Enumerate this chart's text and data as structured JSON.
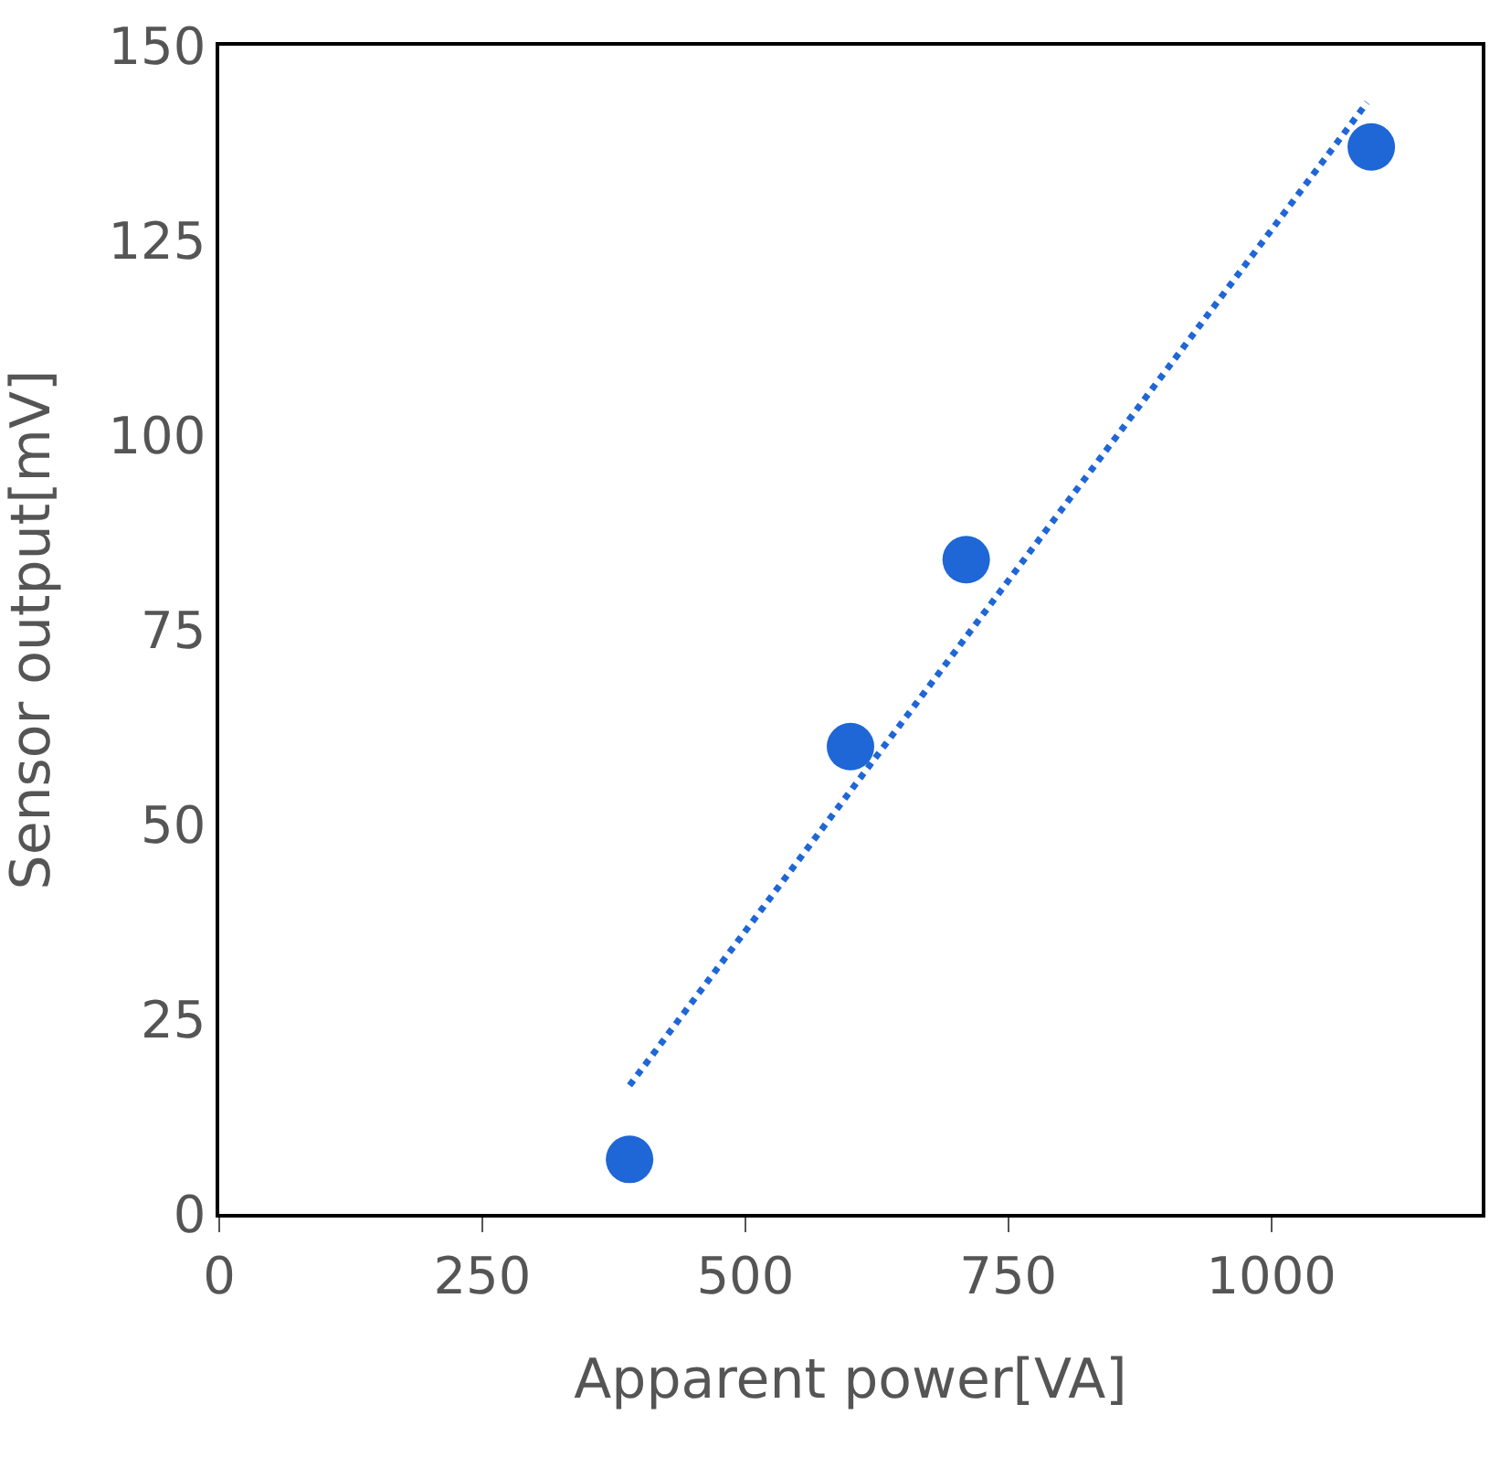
{
  "chart_data": {
    "type": "scatter",
    "xlabel": "Apparent power[VA]",
    "ylabel": "Sensor output[mV]",
    "xlim": [
      0,
      1200
    ],
    "xticks": [
      0,
      250,
      500,
      750,
      1000
    ],
    "ylim": [
      0,
      150
    ],
    "yticks": [
      0,
      25,
      50,
      75,
      100,
      125,
      150
    ],
    "marker": "circle",
    "series": [
      {
        "color": "#1f66d6",
        "x": [
          390,
          600,
          710,
          1095
        ],
        "values": [
          7,
          60,
          84,
          137
        ]
      },
      {
        "type": "line",
        "color": "#1f66d6",
        "line_style": "dotted",
        "marker": "none",
        "x": [
          390,
          1091
        ],
        "values": [
          16.5,
          142.7
        ]
      }
    ]
  }
}
